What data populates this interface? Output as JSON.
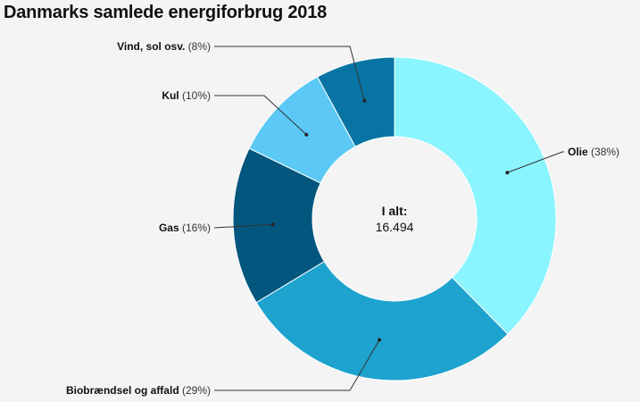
{
  "chart_data": {
    "type": "pie",
    "title": "Danmarks samlede energiforbrug 2018",
    "center_label": "I alt:",
    "center_value": "16.494",
    "slices": [
      {
        "name": "Olie",
        "percent_label": "(38%)",
        "value": 38,
        "color": "#8af4ff"
      },
      {
        "name": "Biobrændsel og affald",
        "percent_label": "(29%)",
        "value": 29,
        "color": "#1ea3cf"
      },
      {
        "name": "Gas",
        "percent_label": "(16%)",
        "value": 16,
        "color": "#03567d"
      },
      {
        "name": "Kul",
        "percent_label": "(10%)",
        "value": 10,
        "color": "#5bc8f5"
      },
      {
        "name": "Vind, sol osv.",
        "percent_label": "(8%)",
        "value": 8,
        "color": "#0874a4"
      }
    ]
  }
}
